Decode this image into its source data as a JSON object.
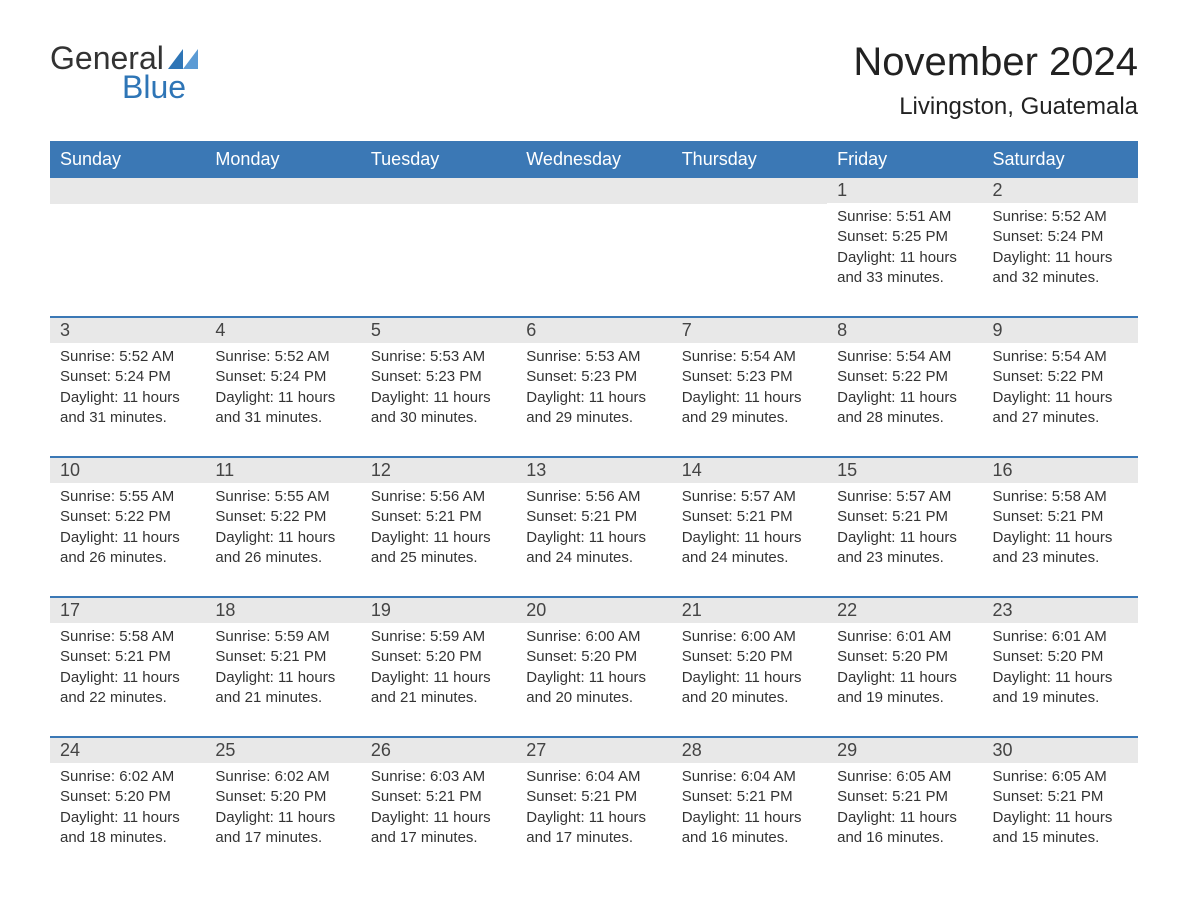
{
  "logo": {
    "general": "General",
    "blue": "Blue"
  },
  "title": "November 2024",
  "location": "Livingston, Guatemala",
  "colors": {
    "header_bg": "#3b78b5",
    "header_text": "#ffffff",
    "daynum_bg": "#e8e8e8",
    "text": "#333333",
    "accent": "#2e75b6"
  },
  "day_headers": [
    "Sunday",
    "Monday",
    "Tuesday",
    "Wednesday",
    "Thursday",
    "Friday",
    "Saturday"
  ],
  "weeks": [
    [
      null,
      null,
      null,
      null,
      null,
      {
        "n": "1",
        "sr": "5:51 AM",
        "ss": "5:25 PM",
        "dl": "11 hours and 33 minutes."
      },
      {
        "n": "2",
        "sr": "5:52 AM",
        "ss": "5:24 PM",
        "dl": "11 hours and 32 minutes."
      }
    ],
    [
      {
        "n": "3",
        "sr": "5:52 AM",
        "ss": "5:24 PM",
        "dl": "11 hours and 31 minutes."
      },
      {
        "n": "4",
        "sr": "5:52 AM",
        "ss": "5:24 PM",
        "dl": "11 hours and 31 minutes."
      },
      {
        "n": "5",
        "sr": "5:53 AM",
        "ss": "5:23 PM",
        "dl": "11 hours and 30 minutes."
      },
      {
        "n": "6",
        "sr": "5:53 AM",
        "ss": "5:23 PM",
        "dl": "11 hours and 29 minutes."
      },
      {
        "n": "7",
        "sr": "5:54 AM",
        "ss": "5:23 PM",
        "dl": "11 hours and 29 minutes."
      },
      {
        "n": "8",
        "sr": "5:54 AM",
        "ss": "5:22 PM",
        "dl": "11 hours and 28 minutes."
      },
      {
        "n": "9",
        "sr": "5:54 AM",
        "ss": "5:22 PM",
        "dl": "11 hours and 27 minutes."
      }
    ],
    [
      {
        "n": "10",
        "sr": "5:55 AM",
        "ss": "5:22 PM",
        "dl": "11 hours and 26 minutes."
      },
      {
        "n": "11",
        "sr": "5:55 AM",
        "ss": "5:22 PM",
        "dl": "11 hours and 26 minutes."
      },
      {
        "n": "12",
        "sr": "5:56 AM",
        "ss": "5:21 PM",
        "dl": "11 hours and 25 minutes."
      },
      {
        "n": "13",
        "sr": "5:56 AM",
        "ss": "5:21 PM",
        "dl": "11 hours and 24 minutes."
      },
      {
        "n": "14",
        "sr": "5:57 AM",
        "ss": "5:21 PM",
        "dl": "11 hours and 24 minutes."
      },
      {
        "n": "15",
        "sr": "5:57 AM",
        "ss": "5:21 PM",
        "dl": "11 hours and 23 minutes."
      },
      {
        "n": "16",
        "sr": "5:58 AM",
        "ss": "5:21 PM",
        "dl": "11 hours and 23 minutes."
      }
    ],
    [
      {
        "n": "17",
        "sr": "5:58 AM",
        "ss": "5:21 PM",
        "dl": "11 hours and 22 minutes."
      },
      {
        "n": "18",
        "sr": "5:59 AM",
        "ss": "5:21 PM",
        "dl": "11 hours and 21 minutes."
      },
      {
        "n": "19",
        "sr": "5:59 AM",
        "ss": "5:20 PM",
        "dl": "11 hours and 21 minutes."
      },
      {
        "n": "20",
        "sr": "6:00 AM",
        "ss": "5:20 PM",
        "dl": "11 hours and 20 minutes."
      },
      {
        "n": "21",
        "sr": "6:00 AM",
        "ss": "5:20 PM",
        "dl": "11 hours and 20 minutes."
      },
      {
        "n": "22",
        "sr": "6:01 AM",
        "ss": "5:20 PM",
        "dl": "11 hours and 19 minutes."
      },
      {
        "n": "23",
        "sr": "6:01 AM",
        "ss": "5:20 PM",
        "dl": "11 hours and 19 minutes."
      }
    ],
    [
      {
        "n": "24",
        "sr": "6:02 AM",
        "ss": "5:20 PM",
        "dl": "11 hours and 18 minutes."
      },
      {
        "n": "25",
        "sr": "6:02 AM",
        "ss": "5:20 PM",
        "dl": "11 hours and 17 minutes."
      },
      {
        "n": "26",
        "sr": "6:03 AM",
        "ss": "5:21 PM",
        "dl": "11 hours and 17 minutes."
      },
      {
        "n": "27",
        "sr": "6:04 AM",
        "ss": "5:21 PM",
        "dl": "11 hours and 17 minutes."
      },
      {
        "n": "28",
        "sr": "6:04 AM",
        "ss": "5:21 PM",
        "dl": "11 hours and 16 minutes."
      },
      {
        "n": "29",
        "sr": "6:05 AM",
        "ss": "5:21 PM",
        "dl": "11 hours and 16 minutes."
      },
      {
        "n": "30",
        "sr": "6:05 AM",
        "ss": "5:21 PM",
        "dl": "11 hours and 15 minutes."
      }
    ]
  ],
  "labels": {
    "sunrise": "Sunrise: ",
    "sunset": "Sunset: ",
    "daylight": "Daylight: "
  }
}
